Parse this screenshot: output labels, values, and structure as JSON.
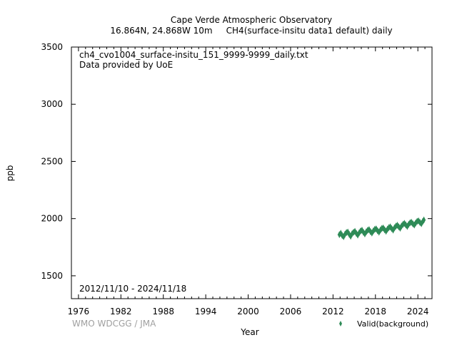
{
  "chart_data": {
    "type": "scatter",
    "title": "Cape Verde Atmospheric Observatory",
    "subtitle": "16.864N, 24.868W 10m     CH4(surface-insitu data1 default) daily",
    "xlabel": "Year",
    "ylabel": "ppb",
    "xlim": [
      1975,
      2026
    ],
    "ylim": [
      1300,
      3500
    ],
    "x_ticks": [
      1976,
      1982,
      1988,
      1994,
      2000,
      2006,
      2012,
      2018,
      2024
    ],
    "y_ticks": [
      1500,
      2000,
      2500,
      3000,
      3500
    ],
    "file_name": "ch4_cvo1004_surface-insitu_151_9999-9999_daily.txt",
    "provider": "Data provided by UoE",
    "date_range": "2012/11/10 - 2024/11/18",
    "credit": "WMO WDCGG / JMA",
    "legend": {
      "placement": "bottom-right",
      "label": "Valid(background)"
    },
    "series": [
      {
        "name": "Valid(background)",
        "color": "#2e8b57",
        "x": [
          2012.9,
          2013.1,
          2013.3,
          2013.5,
          2013.7,
          2013.9,
          2014.1,
          2014.3,
          2014.5,
          2014.7,
          2014.9,
          2015.1,
          2015.3,
          2015.5,
          2015.7,
          2015.9,
          2016.1,
          2016.3,
          2016.5,
          2016.7,
          2016.9,
          2017.1,
          2017.3,
          2017.5,
          2017.7,
          2017.9,
          2018.1,
          2018.3,
          2018.5,
          2018.7,
          2018.9,
          2019.1,
          2019.3,
          2019.5,
          2019.7,
          2019.9,
          2020.1,
          2020.3,
          2020.5,
          2020.7,
          2020.9,
          2021.1,
          2021.3,
          2021.5,
          2021.7,
          2021.9,
          2022.1,
          2022.3,
          2022.5,
          2022.7,
          2022.9,
          2023.1,
          2023.3,
          2023.5,
          2023.7,
          2023.9,
          2024.1,
          2024.3,
          2024.5,
          2024.7,
          2024.85
        ],
        "y": [
          1860,
          1872,
          1852,
          1842,
          1864,
          1878,
          1882,
          1862,
          1846,
          1868,
          1880,
          1888,
          1870,
          1856,
          1876,
          1892,
          1898,
          1880,
          1866,
          1884,
          1898,
          1904,
          1886,
          1874,
          1892,
          1906,
          1910,
          1894,
          1882,
          1900,
          1914,
          1918,
          1902,
          1890,
          1908,
          1922,
          1928,
          1912,
          1900,
          1920,
          1934,
          1942,
          1928,
          1916,
          1936,
          1950,
          1958,
          1944,
          1932,
          1950,
          1964,
          1968,
          1954,
          1944,
          1962,
          1976,
          1980,
          1966,
          1956,
          1976,
          1988
        ]
      }
    ]
  }
}
